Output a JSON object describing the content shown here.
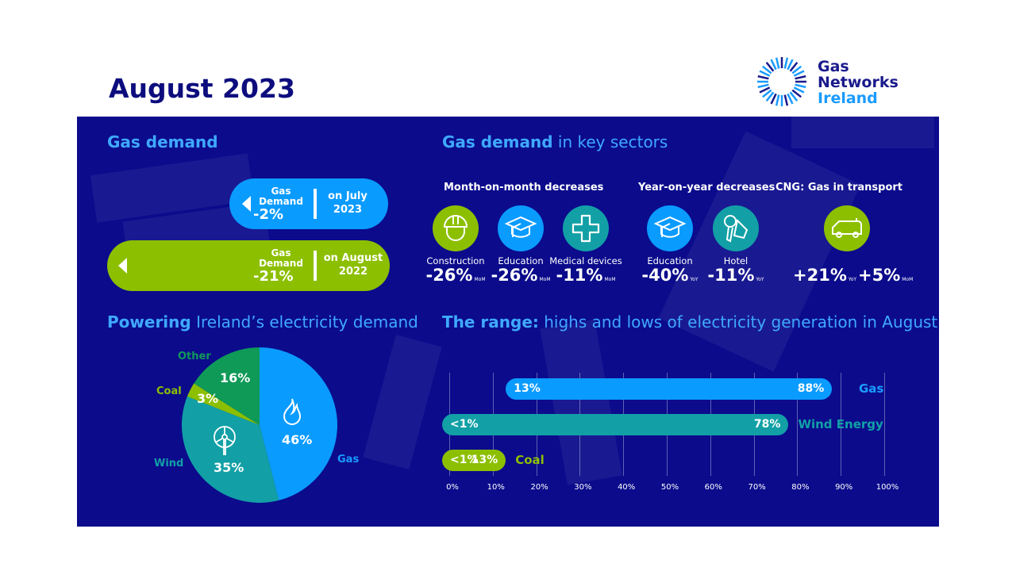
{
  "title": "August 2023",
  "logo": {
    "line1": "Gas",
    "line2": "Networks",
    "line3": "Ireland"
  },
  "colors": {
    "panel": "#0b0b8c",
    "gas": "#0a9bff",
    "wind": "#12a0a6",
    "coal": "#8cbf00",
    "other": "#0f9a58",
    "heading": "#3fa9ff"
  },
  "gas_demand": {
    "heading": "Gas demand",
    "pills": [
      {
        "line1": "Gas",
        "line2": "Demand",
        "value": "-2%",
        "cmp1": "on July",
        "cmp2": "2023"
      },
      {
        "line1": "Gas",
        "line2": "Demand",
        "value": "-21%",
        "cmp1": "on August",
        "cmp2": "2022"
      }
    ]
  },
  "sectors": {
    "heading_bold": "Gas demand",
    "heading_rest": " in key sectors",
    "groups": [
      "Month-on-month decreases",
      "Year-on-year decreases",
      "CNG: Gas in transport"
    ],
    "items": [
      {
        "icon": "hard-hat-icon",
        "label": "Construction",
        "value": "-26%",
        "unit": "MoM"
      },
      {
        "icon": "graduation-cap-icon",
        "label": "Education",
        "value": "-26%",
        "unit": "MoM"
      },
      {
        "icon": "medical-cross-icon",
        "label": "Medical devices",
        "value": "-11%",
        "unit": "MoM"
      },
      {
        "icon": "graduation-cap-icon",
        "label": "Education",
        "value": "-40%",
        "unit": "YoY"
      },
      {
        "icon": "hotel-key-icon",
        "label": "Hotel",
        "value": "-11%",
        "unit": "YoY"
      }
    ],
    "cng": [
      {
        "value": "+21%",
        "unit": "YoY"
      },
      {
        "value": "+5%",
        "unit": "MoM"
      }
    ]
  },
  "chart_data": [
    {
      "type": "pie",
      "title_bold": "Powering",
      "title_rest": " Ireland’s electricity demand",
      "slices": [
        {
          "name": "Gas",
          "value": 46,
          "label": "46%"
        },
        {
          "name": "Wind",
          "value": 35,
          "label": "35%"
        },
        {
          "name": "Coal",
          "value": 3,
          "label": "3%"
        },
        {
          "name": "Other",
          "value": 16,
          "label": "16%"
        }
      ]
    },
    {
      "type": "bar",
      "orientation": "horizontal-range",
      "title_bold": "The range:",
      "title_rest": " highs and lows of electricity generation in August",
      "xlim": [
        0,
        100
      ],
      "xticks": [
        "0%",
        "10%",
        "20%",
        "30%",
        "40%",
        "50%",
        "60%",
        "70%",
        "80%",
        "90%",
        "100%"
      ],
      "series": [
        {
          "name": "Gas",
          "low": 13,
          "high": 88,
          "low_label": "13%",
          "high_label": "88%"
        },
        {
          "name": "Wind Energy",
          "low": 0,
          "high": 78,
          "low_label": "<1%",
          "high_label": "78%"
        },
        {
          "name": "Coal",
          "low": 0,
          "high": 13,
          "low_label": "<1%",
          "high_label": "13%"
        }
      ]
    }
  ]
}
